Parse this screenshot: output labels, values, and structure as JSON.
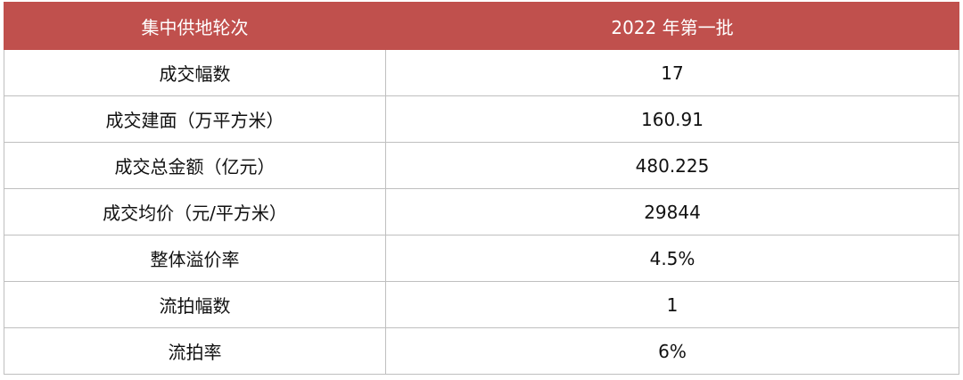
{
  "table": {
    "header": [
      "集中供地轮次",
      "2022 年第一批"
    ],
    "rows": [
      [
        "成交幅数",
        "17"
      ],
      [
        "成交建面（万平方米）",
        "160.91"
      ],
      [
        "成交总金额（亿元）",
        "480.225"
      ],
      [
        "成交均价（元/平方米）",
        "29844"
      ],
      [
        "整体溢价率",
        "4.5%"
      ],
      [
        "流拍幅数",
        "1"
      ],
      [
        "流拍率",
        "6%"
      ]
    ]
  }
}
